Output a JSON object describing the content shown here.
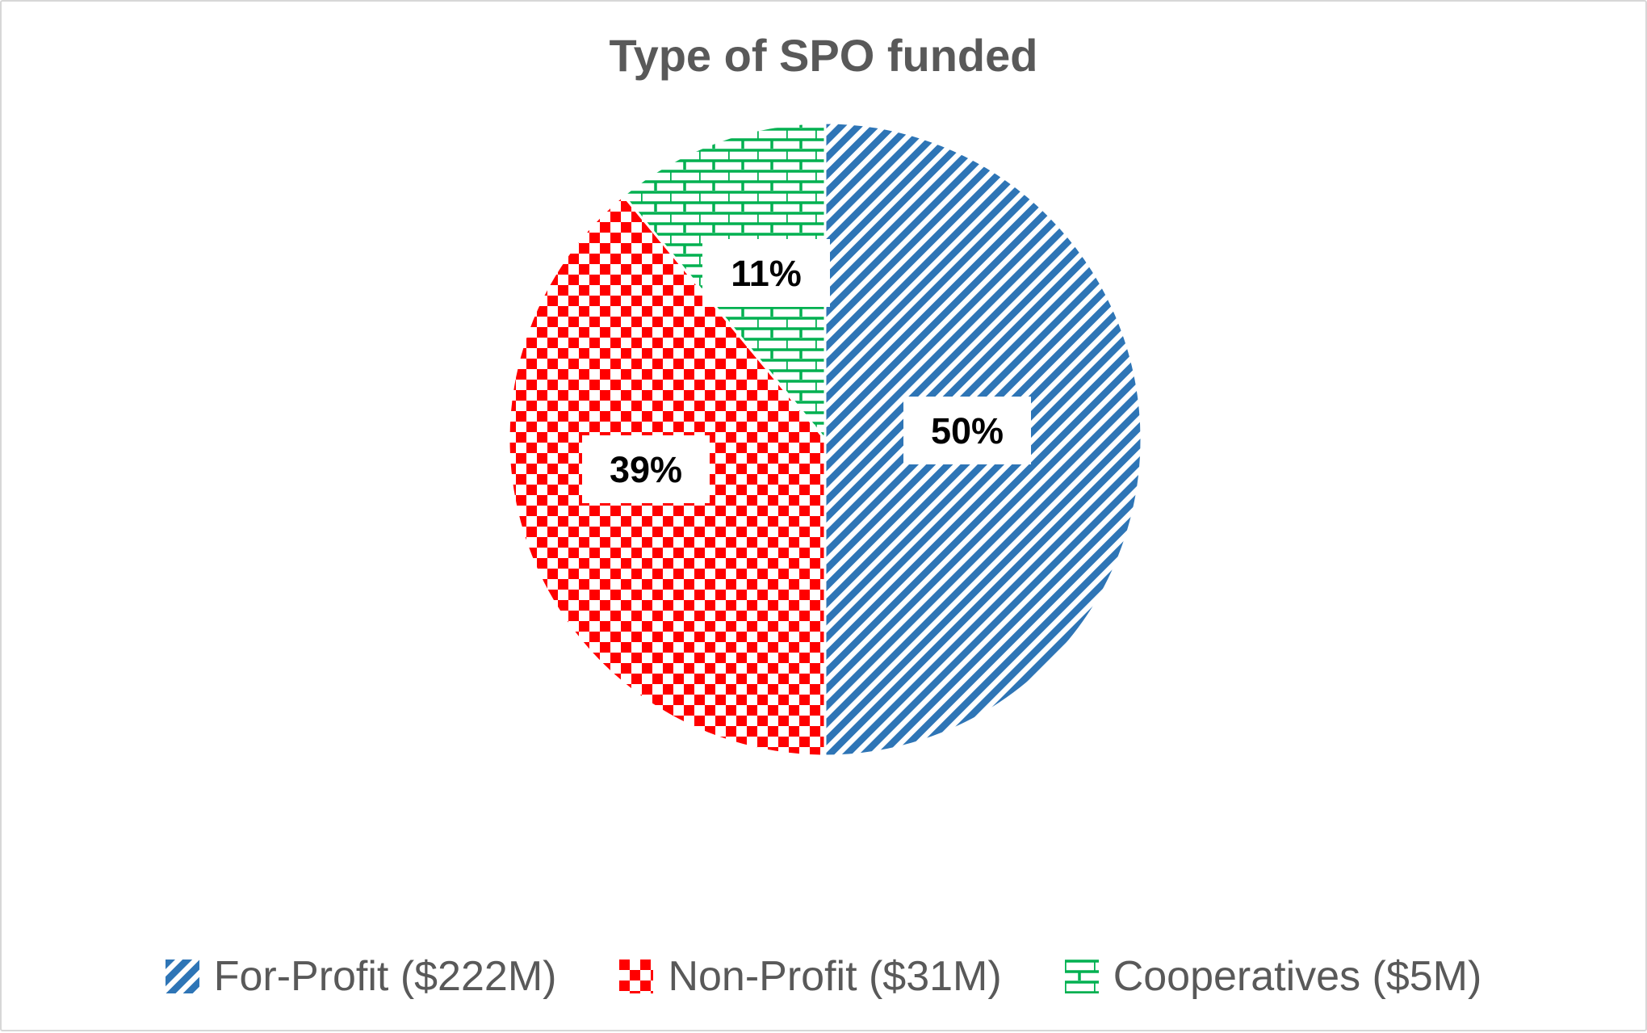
{
  "chart_data": {
    "type": "pie",
    "title": "Type of SPO funded",
    "direction": "clockwise",
    "start_angle_deg": 0,
    "legend_position": "bottom",
    "data_labels": "percent, boxed white",
    "slices": [
      {
        "label": "For-Profit ($222M)",
        "name": "For-Profit",
        "amount": "$222M",
        "percent_label": "50%",
        "percent_value": 50,
        "color": "#2E75B6",
        "pattern": "diagonal-stripes"
      },
      {
        "label": "Non-Profit ($31M)",
        "name": "Non-Profit",
        "amount": "$31M",
        "percent_label": "39%",
        "percent_value": 39,
        "color": "#FF0000",
        "pattern": "checkerboard"
      },
      {
        "label": "Cooperatives ($5M)",
        "name": "Cooperatives",
        "amount": "$5M",
        "percent_label": "11%",
        "percent_value": 11,
        "color": "#00B050",
        "pattern": "bricks"
      }
    ]
  }
}
